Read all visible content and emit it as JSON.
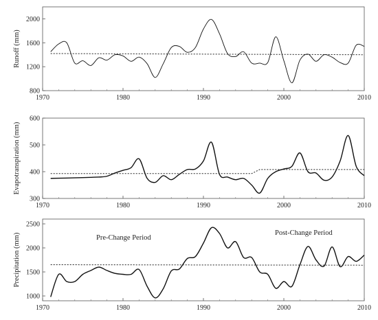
{
  "chart_data": [
    {
      "type": "line",
      "title": "",
      "xlabel": "",
      "ylabel": "Runoff (mm)",
      "xlim": [
        1970,
        2010
      ],
      "ylim": [
        800,
        2200
      ],
      "xticks": [
        "1970",
        "1980",
        "1990",
        "2000",
        "2010"
      ],
      "yticks": [
        "800",
        "1200",
        "1600",
        "2000"
      ],
      "grid": false,
      "series": [
        {
          "style": "solid",
          "x": [
            1971,
            1972,
            1973,
            1974,
            1975,
            1976,
            1977,
            1978,
            1979,
            1980,
            1981,
            1982,
            1983,
            1984,
            1985,
            1986,
            1987,
            1988,
            1989,
            1990,
            1991,
            1992,
            1993,
            1994,
            1995,
            1996,
            1997,
            1998,
            1999,
            2000,
            2001,
            2002,
            2003,
            2004,
            2005,
            2006,
            2007,
            2008,
            2009,
            2010
          ],
          "y": [
            1450,
            1580,
            1600,
            1260,
            1300,
            1220,
            1350,
            1310,
            1400,
            1380,
            1290,
            1360,
            1250,
            1020,
            1250,
            1520,
            1540,
            1440,
            1520,
            1830,
            1990,
            1750,
            1420,
            1370,
            1450,
            1260,
            1260,
            1270,
            1700,
            1300,
            930,
            1310,
            1410,
            1290,
            1400,
            1360,
            1270,
            1260,
            1560,
            1540
          ]
        },
        {
          "style": "dotted",
          "x": [
            1971,
            2010
          ],
          "y": [
            1420,
            1400
          ]
        }
      ]
    },
    {
      "type": "line",
      "title": "",
      "xlabel": "",
      "ylabel": "Evapotranspiration  (mm)",
      "xlim": [
        1970,
        2010
      ],
      "ylim": [
        300,
        600
      ],
      "xticks": [
        "1970",
        "1980",
        "1990",
        "2000",
        "2010"
      ],
      "yticks": [
        "300",
        "400",
        "500",
        "600"
      ],
      "grid": false,
      "series": [
        {
          "style": "solid",
          "x": [
            1971,
            1974,
            1977,
            1978,
            1979,
            1980,
            1981,
            1982,
            1983,
            1984,
            1985,
            1986,
            1987,
            1988,
            1989,
            1990,
            1991,
            1992,
            1993,
            1994,
            1995,
            1996,
            1997,
            1998,
            1999,
            2000,
            2001,
            2002,
            2003,
            2004,
            2005,
            2006,
            2007,
            2008,
            2009,
            2010
          ],
          "y": [
            375,
            377,
            380,
            383,
            395,
            405,
            415,
            448,
            375,
            360,
            385,
            370,
            390,
            408,
            410,
            440,
            510,
            390,
            380,
            370,
            375,
            350,
            320,
            375,
            400,
            410,
            420,
            470,
            400,
            395,
            368,
            380,
            440,
            535,
            420,
            385
          ]
        },
        {
          "style": "dotted",
          "x": [
            1971,
            1996,
            1997,
            2010
          ],
          "y": [
            393,
            393,
            408,
            408
          ]
        }
      ]
    },
    {
      "type": "line",
      "title": "",
      "xlabel": "",
      "ylabel": "Precipitation  (mm)",
      "xlim": [
        1970,
        2010
      ],
      "ylim": [
        900,
        2600
      ],
      "xticks": [
        "1970",
        "1980",
        "1990",
        "2000",
        "2010"
      ],
      "yticks": [
        "1000",
        "1500",
        "2000",
        "2500"
      ],
      "grid": false,
      "annotations": [
        "Pre-Change Period",
        "Post-Change Period"
      ],
      "series": [
        {
          "style": "solid",
          "x": [
            1971,
            1972,
            1973,
            1974,
            1975,
            1976,
            1977,
            1978,
            1979,
            1980,
            1981,
            1982,
            1983,
            1984,
            1985,
            1986,
            1987,
            1988,
            1989,
            1990,
            1991,
            1992,
            1993,
            1994,
            1995,
            1996,
            1997,
            1998,
            1999,
            2000,
            2001,
            2002,
            2003,
            2004,
            2005,
            2006,
            2007,
            2008,
            2009,
            2010
          ],
          "y": [
            980,
            1450,
            1300,
            1300,
            1450,
            1530,
            1600,
            1530,
            1470,
            1450,
            1450,
            1550,
            1200,
            960,
            1150,
            1520,
            1560,
            1780,
            1820,
            2100,
            2420,
            2300,
            2000,
            2130,
            1800,
            1800,
            1500,
            1450,
            1160,
            1300,
            1200,
            1650,
            2030,
            1750,
            1620,
            2020,
            1610,
            1820,
            1720,
            1850
          ]
        },
        {
          "style": "dotted",
          "x": [
            1971,
            2010
          ],
          "y": [
            1650,
            1640
          ]
        }
      ]
    }
  ]
}
